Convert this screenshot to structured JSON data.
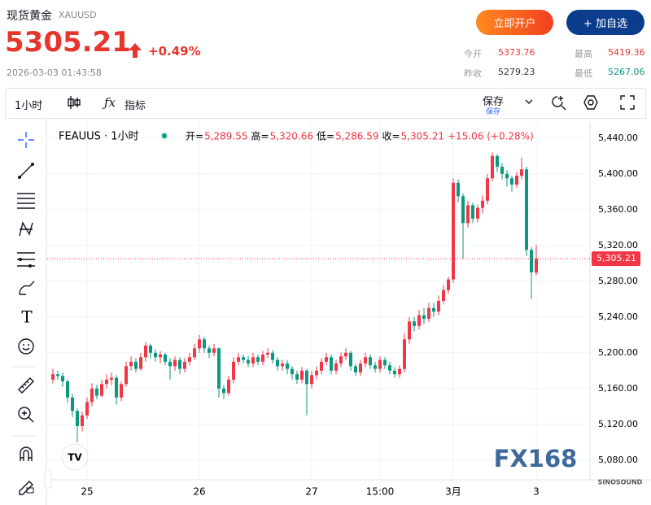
{
  "header": {
    "name": "现货黄金",
    "symbol": "XAUUSD",
    "price": "5305.21",
    "change": "+0.49%",
    "timestamp": "2026-03-03 01:43:58",
    "buttons": [
      "立即开户",
      "+ 加自选"
    ],
    "stats": [
      {
        "label": "今开",
        "value": "5373.76"
      },
      {
        "label": "最高",
        "value": "5419.36"
      },
      {
        "label": "昨收",
        "value": "5279.23"
      },
      {
        "label": "最低",
        "value": "5267.06"
      }
    ]
  },
  "toolbar": {
    "interval": "1小时",
    "indicators": "指标",
    "save": "保存",
    "save_sub": "保存"
  },
  "legend": {
    "symbol": "FEAUUS · 1小时",
    "items": [
      {
        "label": "开=",
        "value": "5,289.55"
      },
      {
        "label": "高=",
        "value": "5,320.66"
      },
      {
        "label": "低=",
        "value": "5,286.59"
      },
      {
        "label": "收=",
        "value": "5,305.21"
      }
    ],
    "change": "+15.06 (+0.28%)"
  },
  "watermark": "FX168",
  "watermark_sub": "SINOSOUND",
  "chart_data": {
    "type": "candlestick",
    "up_color": "#f23645",
    "down_color": "#089981",
    "ylim": [
      5058,
      5458
    ],
    "yticks": [
      {
        "value": 5080,
        "label": "5,080.00"
      },
      {
        "value": 5120,
        "label": "5,120.00"
      },
      {
        "value": 5160,
        "label": "5,160.00"
      },
      {
        "value": 5200,
        "label": "5,200.00"
      },
      {
        "value": 5240,
        "label": "5,240.00"
      },
      {
        "value": 5280,
        "label": "5,280.00"
      },
      {
        "value": 5320,
        "label": "5,320.00"
      },
      {
        "value": 5360,
        "label": "5,360.00"
      },
      {
        "value": 5400,
        "label": "5,400.00"
      },
      {
        "value": 5440,
        "label": "5,440.00"
      }
    ],
    "last_price_label": "5,305.21",
    "categories": [
      null,
      null,
      null,
      null,
      null,
      null,
      null,
      "25",
      null,
      null,
      null,
      null,
      null,
      null,
      null,
      null,
      null,
      null,
      null,
      null,
      null,
      null,
      null,
      null,
      null,
      null,
      null,
      null,
      null,
      null,
      "26",
      null,
      null,
      null,
      null,
      null,
      null,
      null,
      null,
      null,
      null,
      null,
      null,
      null,
      null,
      null,
      null,
      null,
      null,
      null,
      null,
      null,
      null,
      "27",
      null,
      null,
      null,
      null,
      null,
      null,
      null,
      null,
      null,
      null,
      null,
      null,
      null,
      "15:00",
      null,
      null,
      null,
      null,
      null,
      null,
      null,
      null,
      null,
      null,
      null,
      null,
      null,
      null,
      "3月",
      null,
      null,
      null,
      null,
      null,
      null,
      null,
      null,
      null,
      null,
      null,
      null,
      null,
      null,
      null,
      null,
      "3"
    ],
    "open": [
      5170,
      5176,
      5174,
      5168,
      5150,
      5135,
      5118,
      5130,
      5145,
      5160,
      5152,
      5165,
      5170,
      5172,
      5150,
      5165,
      5185,
      5190,
      5182,
      5195,
      5208,
      5200,
      5195,
      5198,
      5190,
      5185,
      5192,
      5182,
      5190,
      5195,
      5205,
      5215,
      5205,
      5200,
      5205,
      5160,
      5155,
      5170,
      5190,
      5195,
      5192,
      5188,
      5195,
      5190,
      5198,
      5200,
      5192,
      5185,
      5188,
      5182,
      5176,
      5170,
      5180,
      5165,
      5175,
      5180,
      5190,
      5195,
      5180,
      5188,
      5196,
      5200,
      5185,
      5178,
      5188,
      5195,
      5186,
      5182,
      5192,
      5186,
      5180,
      5176,
      5182,
      5215,
      5235,
      5230,
      5242,
      5238,
      5250,
      5246,
      5258,
      5270,
      5282,
      5390,
      5375,
      5345,
      5365,
      5350,
      5362,
      5370,
      5395,
      5420,
      5408,
      5400,
      5395,
      5388,
      5398,
      5405,
      5315,
      5289.55
    ],
    "high": [
      5182,
      5180,
      5178,
      5170,
      5154,
      5138,
      5134,
      5150,
      5166,
      5164,
      5170,
      5176,
      5178,
      5175,
      5168,
      5190,
      5196,
      5194,
      5200,
      5212,
      5210,
      5204,
      5202,
      5200,
      5194,
      5196,
      5195,
      5194,
      5200,
      5210,
      5220,
      5218,
      5208,
      5210,
      5206,
      5164,
      5174,
      5195,
      5200,
      5198,
      5196,
      5200,
      5198,
      5202,
      5205,
      5203,
      5195,
      5192,
      5192,
      5185,
      5180,
      5184,
      5182,
      5180,
      5185,
      5194,
      5200,
      5198,
      5192,
      5200,
      5205,
      5202,
      5188,
      5192,
      5200,
      5198,
      5190,
      5196,
      5195,
      5190,
      5184,
      5186,
      5222,
      5240,
      5240,
      5248,
      5250,
      5256,
      5256,
      5264,
      5276,
      5285,
      5395,
      5394,
      5378,
      5370,
      5368,
      5366,
      5376,
      5400,
      5424,
      5422,
      5412,
      5404,
      5398,
      5402,
      5418,
      5408,
      5318,
      5320.66
    ],
    "low": [
      5166,
      5170,
      5162,
      5144,
      5128,
      5100,
      5112,
      5126,
      5140,
      5148,
      5150,
      5160,
      5164,
      5142,
      5146,
      5162,
      5180,
      5178,
      5180,
      5190,
      5194,
      5190,
      5188,
      5186,
      5170,
      5180,
      5176,
      5178,
      5186,
      5192,
      5200,
      5200,
      5194,
      5196,
      5150,
      5148,
      5152,
      5166,
      5186,
      5188,
      5184,
      5184,
      5186,
      5186,
      5194,
      5188,
      5180,
      5180,
      5176,
      5170,
      5165,
      5166,
      5130,
      5160,
      5170,
      5176,
      5186,
      5176,
      5176,
      5184,
      5192,
      5180,
      5174,
      5174,
      5184,
      5182,
      5178,
      5178,
      5182,
      5176,
      5172,
      5172,
      5178,
      5210,
      5224,
      5226,
      5232,
      5234,
      5240,
      5242,
      5254,
      5266,
      5278,
      5368,
      5305,
      5340,
      5345,
      5346,
      5356,
      5366,
      5392,
      5402,
      5394,
      5386,
      5380,
      5384,
      5394,
      5308,
      5260,
      5286.59
    ],
    "close": [
      5176,
      5174,
      5168,
      5150,
      5135,
      5118,
      5130,
      5145,
      5160,
      5152,
      5165,
      5170,
      5172,
      5150,
      5165,
      5185,
      5190,
      5182,
      5195,
      5208,
      5200,
      5195,
      5198,
      5190,
      5185,
      5192,
      5182,
      5190,
      5195,
      5205,
      5215,
      5205,
      5200,
      5205,
      5160,
      5155,
      5170,
      5190,
      5195,
      5192,
      5188,
      5195,
      5190,
      5198,
      5200,
      5192,
      5185,
      5188,
      5182,
      5176,
      5170,
      5180,
      5165,
      5175,
      5180,
      5190,
      5195,
      5180,
      5188,
      5196,
      5200,
      5185,
      5178,
      5188,
      5195,
      5186,
      5182,
      5192,
      5186,
      5180,
      5176,
      5182,
      5215,
      5235,
      5230,
      5242,
      5238,
      5250,
      5246,
      5258,
      5270,
      5282,
      5390,
      5375,
      5345,
      5365,
      5350,
      5362,
      5370,
      5395,
      5420,
      5408,
      5400,
      5395,
      5388,
      5398,
      5405,
      5315,
      5290,
      5305.21
    ]
  }
}
